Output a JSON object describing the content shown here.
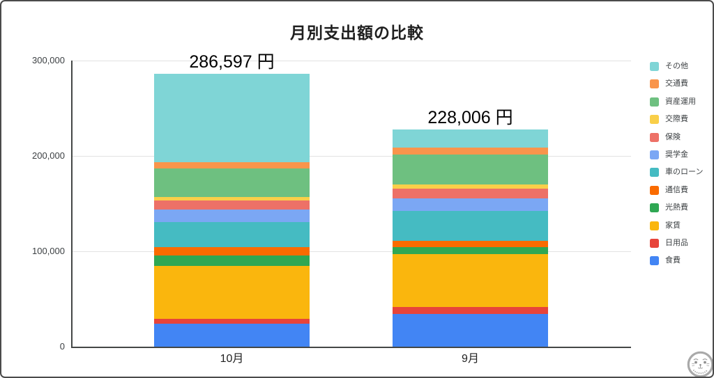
{
  "chart_data": {
    "type": "bar",
    "stacked": true,
    "title": "月別支出額の比較",
    "categories": [
      "10月",
      "9月"
    ],
    "totals": [
      286597,
      228006
    ],
    "total_labels": [
      "286,597 円",
      "228,006 円"
    ],
    "currency_suffix": "円",
    "ylim": [
      0,
      300000
    ],
    "y_ticks": [
      {
        "value": 0,
        "label": "0"
      },
      {
        "value": 100000,
        "label": "100,000"
      },
      {
        "value": 200000,
        "label": "200,000"
      },
      {
        "value": 300000,
        "label": "300,000"
      }
    ],
    "grid": true,
    "legend_position": "right",
    "series": [
      {
        "name": "食費",
        "color": "#4285F4",
        "values": [
          24300,
          34500
        ]
      },
      {
        "name": "日用品",
        "color": "#E7443A",
        "values": [
          4800,
          7300
        ]
      },
      {
        "name": "家賃",
        "color": "#FAB60D",
        "values": [
          56000,
          55300
        ]
      },
      {
        "name": "光熱費",
        "color": "#2FA753",
        "values": [
          10900,
          7300
        ]
      },
      {
        "name": "通信費",
        "color": "#FA6B00",
        "values": [
          8200,
          6900
        ]
      },
      {
        "name": "車のローン",
        "color": "#45BBC2",
        "values": [
          26800,
          31200
        ]
      },
      {
        "name": "奨学金",
        "color": "#7BA7F4",
        "values": [
          12900,
          13200
        ]
      },
      {
        "name": "保険",
        "color": "#ED7167",
        "values": [
          9500,
          9800
        ]
      },
      {
        "name": "交際費",
        "color": "#F9CF49",
        "values": [
          3900,
          4800
        ]
      },
      {
        "name": "資産運用",
        "color": "#6EC080",
        "values": [
          29700,
          31200
        ]
      },
      {
        "name": "交通費",
        "color": "#F9954C",
        "values": [
          6300,
          7300
        ]
      },
      {
        "name": "その他",
        "color": "#7FD5D6",
        "values": [
          93297,
          19206
        ]
      }
    ],
    "legend_order_top_to_bottom": [
      "その他",
      "交通費",
      "資産運用",
      "交際費",
      "保険",
      "奨学金",
      "車のローン",
      "通信費",
      "光熱費",
      "家賃",
      "日用品",
      "食費"
    ]
  },
  "colors": {
    "grid": "#e2e2e2",
    "axis": "#444746",
    "title_text": "#1f1f1f",
    "tick_text": "#3c4043",
    "frame_border": "#4a4a4a"
  }
}
